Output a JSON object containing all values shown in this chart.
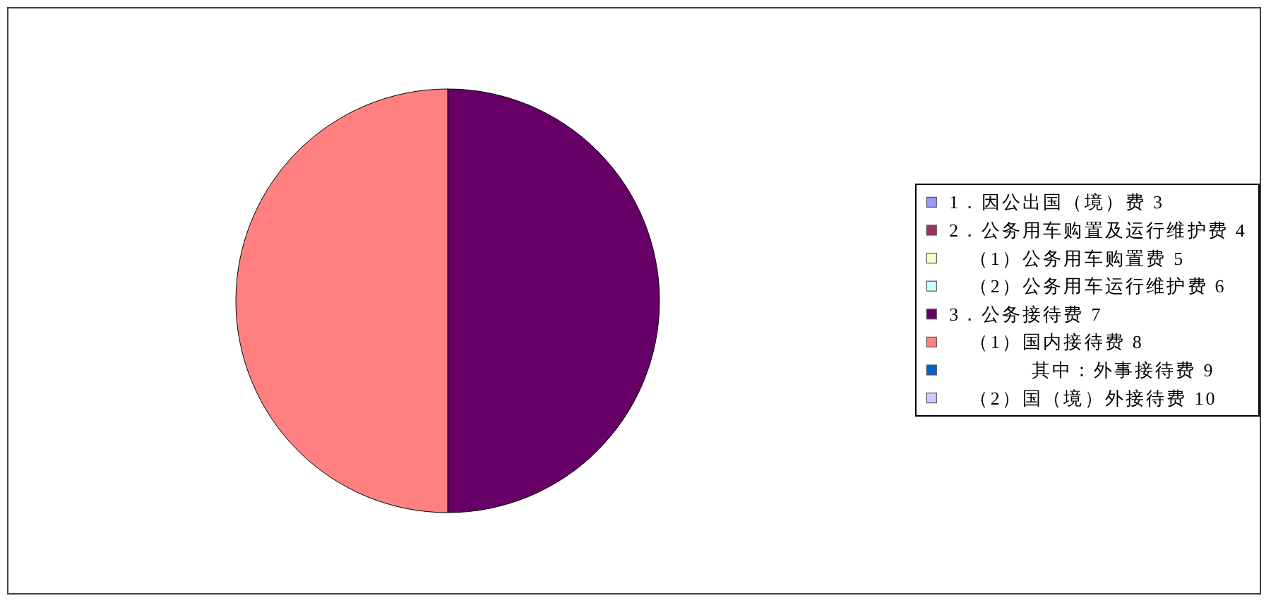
{
  "chart_data": {
    "type": "pie",
    "categories": [
      "1．因公出国（境）费 3",
      "2．公务用车购置及运行维护费 4",
      "　（1）公务用车购置费 5",
      "　（2）公务用车运行维护费 6",
      "3．公务接待费 7",
      "　（1）国内接待费 8",
      "　　　　其中：外事接待费 9",
      "　（2）国（境）外接待费 10"
    ],
    "values": [
      0,
      0,
      0,
      0,
      50,
      50,
      0,
      0
    ],
    "colors": [
      "#9999ff",
      "#993366",
      "#ffffcc",
      "#ccffff",
      "#660066",
      "#ff8080",
      "#0066cc",
      "#ccccff"
    ],
    "legend": "right"
  }
}
